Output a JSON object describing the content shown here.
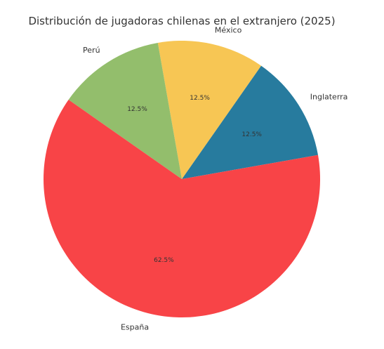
{
  "chart_data": {
    "type": "pie",
    "title": "Distribución de jugadoras chilenas en el extranjero (2025)",
    "slices": [
      {
        "label": "Inglaterra",
        "value": 12.5,
        "pct_label": "12.5%",
        "color": "#277b9e"
      },
      {
        "label": "México",
        "value": 12.5,
        "pct_label": "12.5%",
        "color": "#f7c654"
      },
      {
        "label": "Perú",
        "value": 12.5,
        "pct_label": "12.5%",
        "color": "#93be6c"
      },
      {
        "label": "España",
        "value": 62.5,
        "pct_label": "62.5%",
        "color": "#f84447"
      }
    ],
    "legend": false
  }
}
